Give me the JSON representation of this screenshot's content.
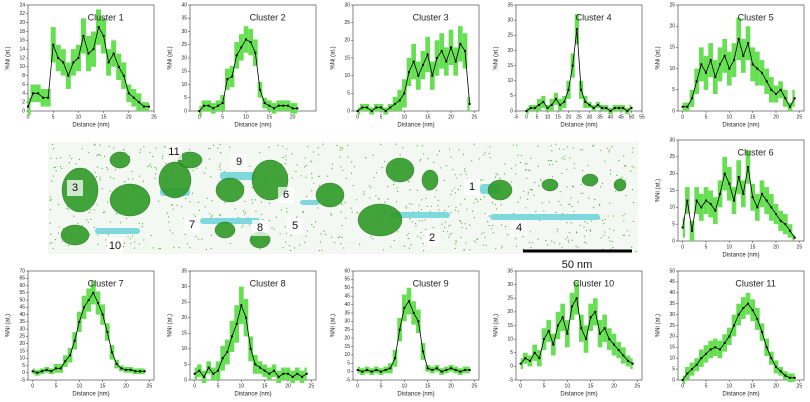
{
  "chart_data": [
    {
      "type": "line",
      "title": "Cluster 1",
      "x_label": "Distance (nm)",
      "y_label": "%Ni (at.)",
      "color": "#000000",
      "band_color": "#66e052",
      "x": [
        0,
        1,
        2,
        3,
        4,
        5,
        6,
        7,
        8,
        9,
        10,
        11,
        12,
        13,
        14,
        15,
        16,
        17,
        18,
        19,
        20,
        21,
        22,
        23,
        24
      ],
      "values": [
        1,
        4,
        4,
        3,
        3,
        15,
        12,
        11,
        8,
        11,
        12,
        17,
        13,
        14,
        19,
        17,
        11,
        13,
        10,
        8,
        4,
        3,
        2,
        1,
        1
      ],
      "error": [
        2,
        2,
        2,
        2,
        2,
        4,
        3,
        3,
        3,
        3,
        3,
        4,
        4,
        4,
        4,
        4,
        3,
        3,
        3,
        3,
        2,
        2,
        2,
        1,
        1
      ],
      "xlim": [
        0,
        25
      ],
      "xticks": [
        0,
        5,
        10,
        15,
        20,
        25
      ],
      "ylim": [
        0,
        24
      ],
      "yticks": [
        0,
        2,
        4,
        6,
        8,
        10,
        12,
        14,
        16,
        18,
        20,
        22,
        24
      ]
    },
    {
      "type": "line",
      "title": "Cluster 2",
      "x_label": "Distance (nm)",
      "y_label": "%Ni (at.)",
      "color": "#000000",
      "band_color": "#66e052",
      "x": [
        0,
        1,
        2,
        3,
        4,
        5,
        6,
        7,
        8,
        9,
        10,
        11,
        12,
        13,
        14,
        15,
        16,
        17,
        18,
        19,
        20,
        21
      ],
      "values": [
        0,
        2,
        2,
        1,
        2,
        3,
        12,
        13,
        21,
        24,
        27,
        26,
        22,
        8,
        3,
        2,
        1,
        2,
        2,
        2,
        1,
        1
      ],
      "error": [
        2,
        2,
        2,
        2,
        2,
        3,
        4,
        4,
        5,
        5,
        5,
        5,
        5,
        3,
        2,
        2,
        2,
        2,
        2,
        2,
        2,
        2
      ],
      "xlim": [
        -2,
        25
      ],
      "xticks": [
        0,
        5,
        10,
        15,
        20
      ],
      "ylim": [
        0,
        40
      ],
      "yticks": [
        0,
        5,
        10,
        15,
        20,
        25,
        30,
        35,
        40
      ]
    },
    {
      "type": "line",
      "title": "Cluster 3",
      "x_label": "Distance (nm)",
      "y_label": "%Ni (at.)",
      "color": "#000000",
      "band_color": "#66e052",
      "x": [
        0,
        1,
        2,
        3,
        4,
        5,
        6,
        7,
        8,
        9,
        10,
        11,
        12,
        13,
        14,
        15,
        16,
        17,
        18,
        19,
        20,
        21,
        22,
        23,
        24
      ],
      "values": [
        0,
        1,
        1,
        0,
        1,
        1,
        0,
        1,
        2,
        3,
        5,
        11,
        14,
        10,
        13,
        16,
        10,
        15,
        17,
        14,
        18,
        14,
        19,
        17,
        2
      ],
      "error": [
        1,
        1,
        1,
        1,
        1,
        1,
        1,
        1,
        2,
        3,
        4,
        4,
        5,
        4,
        4,
        5,
        4,
        5,
        5,
        4,
        5,
        4,
        5,
        5,
        2
      ],
      "xlim": [
        -1,
        26
      ],
      "xticks": [
        0,
        5,
        10,
        15,
        20,
        25
      ],
      "ylim": [
        0,
        30
      ],
      "yticks": [
        0,
        5,
        10,
        15,
        20,
        25,
        30
      ]
    },
    {
      "type": "line",
      "title": "Cluster 4",
      "x_label": "Distance (nm)",
      "y_label": "%Ni (at.)",
      "color": "#000000",
      "band_color": "#66e052",
      "x": [
        0,
        2,
        4,
        6,
        8,
        10,
        12,
        14,
        16,
        18,
        20,
        22,
        24,
        26,
        28,
        30,
        32,
        34,
        36,
        38,
        40,
        42,
        44,
        46,
        48,
        50
      ],
      "values": [
        0,
        1,
        1,
        2,
        3,
        1,
        2,
        4,
        2,
        3,
        7,
        15,
        27,
        7,
        3,
        2,
        1,
        2,
        1,
        1,
        0,
        1,
        1,
        1,
        0,
        1
      ],
      "error": [
        1,
        1,
        1,
        2,
        2,
        1,
        2,
        2,
        2,
        2,
        3,
        4,
        5,
        3,
        2,
        1,
        1,
        1,
        1,
        1,
        1,
        1,
        1,
        1,
        1,
        1
      ],
      "xlim": [
        -5,
        55
      ],
      "xticks": [
        -5,
        0,
        5,
        10,
        15,
        20,
        25,
        30,
        35,
        40,
        45,
        50,
        55
      ],
      "ylim": [
        0,
        35
      ],
      "yticks": [
        0,
        5,
        10,
        15,
        20,
        25,
        30,
        35
      ]
    },
    {
      "type": "line",
      "title": "Cluster 5",
      "x_label": "Distance (nm)",
      "y_label": "%Ni (at.)",
      "color": "#000000",
      "band_color": "#66e052",
      "x": [
        0,
        1,
        2,
        3,
        4,
        5,
        6,
        7,
        8,
        9,
        10,
        11,
        12,
        13,
        14,
        15,
        16,
        17,
        18,
        19,
        20,
        21,
        22,
        23,
        24
      ],
      "values": [
        1,
        1,
        3,
        7,
        11,
        9,
        12,
        8,
        11,
        13,
        10,
        12,
        17,
        13,
        16,
        11,
        10,
        9,
        7,
        5,
        4,
        5,
        3,
        1,
        3
      ],
      "error": [
        1,
        1,
        2,
        3,
        4,
        4,
        4,
        4,
        4,
        4,
        4,
        4,
        5,
        4,
        4,
        4,
        4,
        3,
        3,
        3,
        2,
        2,
        2,
        1,
        2
      ],
      "xlim": [
        -1,
        26
      ],
      "xticks": [
        0,
        5,
        10,
        15,
        20,
        25
      ],
      "ylim": [
        0,
        25
      ],
      "yticks": [
        0,
        5,
        10,
        15,
        20,
        25
      ]
    },
    {
      "type": "line",
      "title": "Cluster 6",
      "x_label": "Distance (nm)",
      "y_label": "%Ni (at.)",
      "color": "#000000",
      "band_color": "#66e052",
      "x": [
        0,
        1,
        2,
        3,
        4,
        5,
        6,
        7,
        8,
        9,
        10,
        11,
        12,
        13,
        14,
        15,
        16,
        17,
        18,
        19,
        20,
        21,
        22,
        23,
        24
      ],
      "values": [
        4,
        12,
        3,
        12,
        10,
        12,
        11,
        9,
        14,
        20,
        17,
        12,
        19,
        14,
        22,
        13,
        10,
        14,
        12,
        10,
        8,
        6,
        5,
        3,
        1
      ],
      "error": [
        3,
        4,
        3,
        4,
        4,
        4,
        4,
        4,
        4,
        5,
        5,
        4,
        5,
        4,
        5,
        4,
        4,
        4,
        4,
        4,
        3,
        3,
        3,
        2,
        1
      ],
      "xlim": [
        -1,
        26
      ],
      "xticks": [
        0,
        5,
        10,
        15,
        20,
        25
      ],
      "ylim": [
        0,
        30
      ],
      "yticks": [
        0,
        5,
        10,
        15,
        20,
        25,
        30
      ]
    },
    {
      "type": "line",
      "title": "Cluster 7",
      "x_label": "Distance (nm)",
      "y_label": "%Ni (at.)",
      "color": "#000000",
      "band_color": "#66e052",
      "x": [
        0,
        1,
        2,
        3,
        4,
        5,
        6,
        7,
        8,
        9,
        10,
        11,
        12,
        13,
        14,
        15,
        16,
        17,
        18,
        19,
        20,
        21,
        22,
        23,
        24
      ],
      "values": [
        1,
        0,
        1,
        2,
        1,
        3,
        3,
        8,
        12,
        22,
        35,
        45,
        50,
        55,
        48,
        40,
        28,
        14,
        6,
        3,
        2,
        2,
        1,
        1,
        1
      ],
      "error": [
        2,
        2,
        2,
        2,
        2,
        3,
        3,
        4,
        5,
        6,
        7,
        8,
        8,
        8,
        8,
        7,
        6,
        5,
        3,
        2,
        2,
        2,
        2,
        2,
        2
      ],
      "xlim": [
        -1,
        26
      ],
      "xticks": [
        0,
        5,
        10,
        15,
        20,
        25
      ],
      "ylim": [
        -5,
        70
      ],
      "yticks": [
        -5,
        0,
        5,
        10,
        15,
        20,
        25,
        30,
        35,
        40,
        45,
        50,
        55,
        60,
        65,
        70
      ]
    },
    {
      "type": "line",
      "title": "Cluster 8",
      "x_label": "Distance (nm)",
      "y_label": "%Ni (at.)",
      "color": "#000000",
      "band_color": "#66e052",
      "x": [
        0,
        1,
        2,
        3,
        4,
        5,
        6,
        7,
        8,
        9,
        10,
        11,
        12,
        13,
        14,
        15,
        16,
        17,
        18,
        19,
        20,
        21,
        22,
        23,
        24
      ],
      "values": [
        2,
        3,
        1,
        4,
        2,
        3,
        7,
        9,
        14,
        18,
        24,
        20,
        10,
        5,
        4,
        3,
        2,
        3,
        1,
        2,
        2,
        1,
        2,
        1,
        2
      ],
      "error": [
        2,
        2,
        2,
        2,
        2,
        3,
        4,
        4,
        5,
        6,
        6,
        6,
        4,
        3,
        2,
        2,
        2,
        2,
        2,
        2,
        2,
        2,
        2,
        2,
        2
      ],
      "xlim": [
        -1,
        26
      ],
      "xticks": [
        0,
        5,
        10,
        15,
        20,
        25
      ],
      "ylim": [
        0,
        35
      ],
      "yticks": [
        0,
        5,
        10,
        15,
        20,
        25,
        30,
        35
      ]
    },
    {
      "type": "line",
      "title": "Cluster 9",
      "x_label": "Distance (nm)",
      "y_label": "%Ni (at.)",
      "color": "#000000",
      "band_color": "#66e052",
      "x": [
        0,
        1,
        2,
        3,
        4,
        5,
        6,
        7,
        8,
        9,
        10,
        11,
        12,
        13,
        14,
        15,
        16,
        17,
        18,
        19,
        20,
        21,
        22,
        23,
        24
      ],
      "values": [
        1,
        0,
        1,
        0,
        1,
        0,
        1,
        2,
        8,
        25,
        38,
        42,
        35,
        30,
        12,
        2,
        1,
        2,
        0,
        1,
        2,
        1,
        0,
        1,
        1
      ],
      "error": [
        2,
        2,
        2,
        2,
        2,
        2,
        2,
        3,
        5,
        7,
        8,
        8,
        7,
        7,
        5,
        2,
        2,
        2,
        2,
        2,
        2,
        2,
        2,
        2,
        2
      ],
      "xlim": [
        -1,
        26
      ],
      "xticks": [
        0,
        5,
        10,
        15,
        20,
        25
      ],
      "ylim": [
        -5,
        60
      ],
      "yticks": [
        -5,
        0,
        5,
        10,
        15,
        20,
        25,
        30,
        35,
        40,
        45,
        50,
        55,
        60
      ]
    },
    {
      "type": "line",
      "title": "Cluster 10",
      "x_label": "Distance (nm)",
      "y_label": "%Ni (at.)",
      "color": "#000000",
      "band_color": "#66e052",
      "x": [
        0,
        1,
        2,
        3,
        4,
        5,
        6,
        7,
        8,
        9,
        10,
        11,
        12,
        13,
        14,
        15,
        16,
        17,
        18,
        19,
        20,
        21,
        22,
        23,
        24
      ],
      "values": [
        1,
        3,
        2,
        5,
        3,
        10,
        13,
        8,
        15,
        18,
        12,
        22,
        25,
        14,
        10,
        18,
        20,
        12,
        14,
        10,
        8,
        6,
        4,
        2,
        1
      ],
      "error": [
        2,
        2,
        2,
        3,
        3,
        4,
        4,
        4,
        5,
        5,
        5,
        5,
        6,
        5,
        5,
        5,
        5,
        5,
        5,
        4,
        4,
        3,
        3,
        2,
        2
      ],
      "xlim": [
        -1,
        26
      ],
      "xticks": [
        0,
        5,
        10,
        15,
        20,
        25
      ],
      "ylim": [
        -5,
        35
      ],
      "yticks": [
        -5,
        0,
        5,
        10,
        15,
        20,
        25,
        30,
        35
      ]
    },
    {
      "type": "line",
      "title": "Cluster 11",
      "x_label": "Distance (nm)",
      "y_label": "%Ni (at.)",
      "color": "#000000",
      "band_color": "#66e052",
      "x": [
        0,
        1,
        2,
        3,
        4,
        5,
        6,
        7,
        8,
        9,
        10,
        11,
        12,
        13,
        14,
        15,
        16,
        17,
        18,
        19,
        20,
        21,
        22,
        23,
        24
      ],
      "values": [
        0,
        3,
        5,
        7,
        10,
        12,
        14,
        15,
        14,
        17,
        20,
        25,
        30,
        33,
        35,
        32,
        28,
        22,
        15,
        10,
        6,
        4,
        2,
        1,
        1
      ],
      "error": [
        2,
        3,
        3,
        3,
        4,
        4,
        4,
        4,
        4,
        4,
        4,
        5,
        5,
        5,
        5,
        5,
        5,
        4,
        4,
        3,
        3,
        2,
        2,
        2,
        2
      ],
      "xlim": [
        -1,
        26
      ],
      "xticks": [
        0,
        5,
        10,
        15,
        20,
        25
      ],
      "ylim": [
        0,
        50
      ],
      "yticks": [
        0,
        5,
        10,
        15,
        20,
        25,
        30,
        35,
        40,
        45,
        50
      ]
    }
  ],
  "map_image": {
    "labels": [
      "1",
      "2",
      "3",
      "4",
      "5",
      "6",
      "7",
      "8",
      "9",
      "10",
      "11"
    ],
    "scale_bar": "50 nm"
  }
}
